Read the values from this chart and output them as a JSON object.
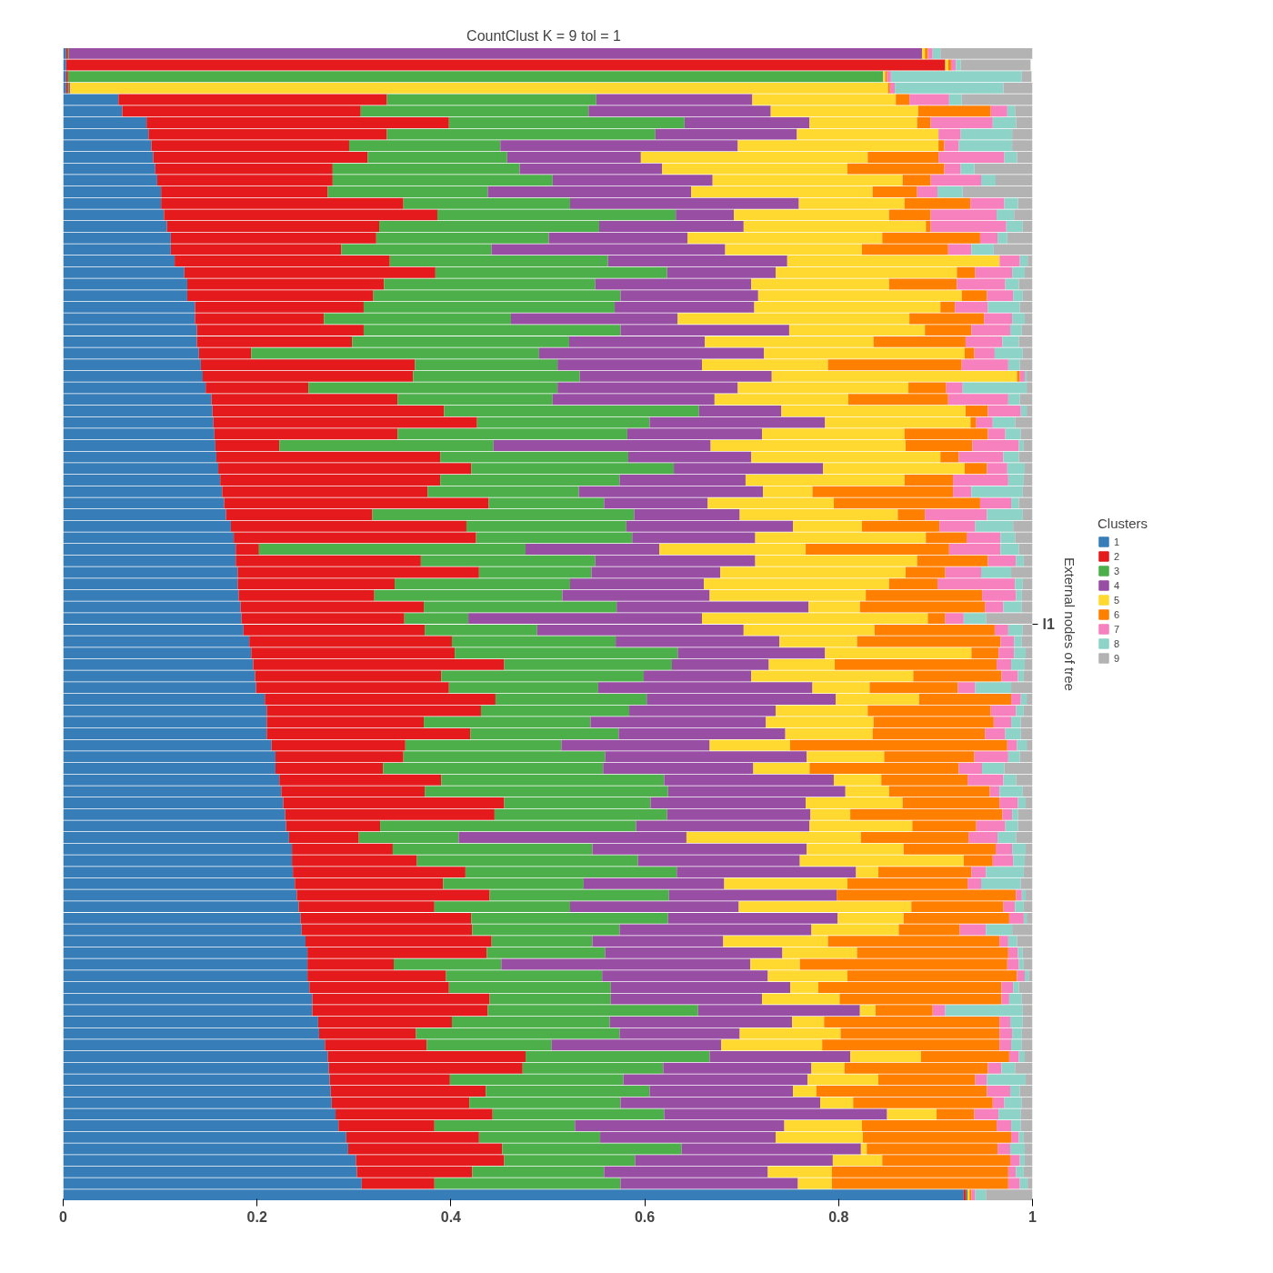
{
  "chart_data": {
    "type": "bar",
    "orientation": "horizontal",
    "stacked": true,
    "title": "CountClust K =  9 tol =  1",
    "ylabel": "External nodes of tree",
    "legend_title": "Clusters",
    "legend": "right",
    "grid": false,
    "annotations": [
      "l1"
    ],
    "xlim": [
      0,
      1
    ],
    "xticks": [
      0,
      0.2,
      0.4,
      0.6,
      0.8,
      1
    ],
    "categories": [
      null,
      null,
      null,
      null,
      null,
      null,
      null,
      null,
      null,
      null,
      null,
      null,
      null,
      null,
      null,
      null,
      null,
      null,
      null,
      null,
      null,
      null,
      null,
      null,
      null,
      null,
      null,
      null,
      null,
      null,
      null,
      null,
      null,
      null,
      null,
      null,
      null,
      null,
      null,
      null,
      null,
      null,
      null,
      null,
      null,
      null,
      null,
      null,
      null,
      null,
      null,
      null,
      null,
      null,
      null,
      null,
      null,
      null,
      null,
      null,
      null,
      null,
      null,
      null,
      null,
      null,
      null,
      null,
      null,
      null,
      null,
      null,
      null,
      null,
      null,
      null,
      null,
      null,
      null,
      null,
      null,
      null,
      null,
      null,
      null,
      null,
      null,
      null,
      null,
      null,
      null,
      null,
      null,
      null,
      null,
      null,
      null,
      null,
      null,
      null
    ],
    "series": [
      {
        "name": "1",
        "color": "#377eb8",
        "values": [
          0.003,
          0.003,
          0.003,
          0.003,
          0.057,
          0.061,
          0.086,
          0.088,
          0.091,
          0.093,
          0.095,
          0.097,
          0.101,
          0.101,
          0.104,
          0.107,
          0.111,
          0.111,
          0.115,
          0.125,
          0.128,
          0.128,
          0.136,
          0.136,
          0.138,
          0.138,
          0.14,
          0.142,
          0.144,
          0.147,
          0.153,
          0.154,
          0.155,
          0.156,
          0.157,
          0.158,
          0.16,
          0.162,
          0.164,
          0.166,
          0.168,
          0.173,
          0.176,
          0.178,
          0.178,
          0.18,
          0.18,
          0.181,
          0.183,
          0.184,
          0.186,
          0.192,
          0.194,
          0.196,
          0.198,
          0.199,
          0.208,
          0.21,
          0.21,
          0.21,
          0.215,
          0.219,
          0.219,
          0.223,
          0.225,
          0.227,
          0.229,
          0.23,
          0.233,
          0.236,
          0.236,
          0.237,
          0.239,
          0.241,
          0.243,
          0.245,
          0.246,
          0.25,
          0.252,
          0.252,
          0.252,
          0.254,
          0.257,
          0.257,
          0.263,
          0.264,
          0.27,
          0.273,
          0.274,
          0.275,
          0.276,
          0.277,
          0.281,
          0.284,
          0.292,
          0.294,
          0.302,
          0.303,
          0.308,
          0.929
        ]
      },
      {
        "name": "2",
        "color": "#e41a1c",
        "values": [
          0.002,
          0.907,
          0.002,
          0.002,
          0.277,
          0.246,
          0.312,
          0.246,
          0.204,
          0.221,
          0.183,
          0.181,
          0.172,
          0.25,
          0.282,
          0.219,
          0.212,
          0.176,
          0.222,
          0.259,
          0.203,
          0.192,
          0.174,
          0.133,
          0.172,
          0.16,
          0.054,
          0.221,
          0.217,
          0.106,
          0.192,
          0.239,
          0.272,
          0.189,
          0.066,
          0.231,
          0.261,
          0.227,
          0.212,
          0.273,
          0.151,
          0.243,
          0.25,
          0.024,
          0.191,
          0.249,
          0.162,
          0.14,
          0.189,
          0.168,
          0.187,
          0.209,
          0.21,
          0.259,
          0.192,
          0.199,
          0.238,
          0.221,
          0.162,
          0.21,
          0.138,
          0.132,
          0.111,
          0.167,
          0.148,
          0.228,
          0.216,
          0.097,
          0.072,
          0.104,
          0.129,
          0.178,
          0.153,
          0.199,
          0.14,
          0.176,
          0.176,
          0.192,
          0.185,
          0.089,
          0.143,
          0.144,
          0.183,
          0.181,
          0.138,
          0.1,
          0.105,
          0.204,
          0.2,
          0.124,
          0.16,
          0.142,
          0.162,
          0.099,
          0.137,
          0.159,
          0.153,
          0.119,
          0.075,
          0.002
        ]
      },
      {
        "name": "3",
        "color": "#4daf4a",
        "values": [
          0.001,
          null,
          0.841,
          0.001,
          0.216,
          0.235,
          0.243,
          0.277,
          0.156,
          0.144,
          0.193,
          0.227,
          0.165,
          0.172,
          0.246,
          0.227,
          0.178,
          0.155,
          0.225,
          0.239,
          0.218,
          0.255,
          0.259,
          0.193,
          0.265,
          0.224,
          0.297,
          0.147,
          0.172,
          0.257,
          0.16,
          0.263,
          0.178,
          0.237,
          0.221,
          0.194,
          0.209,
          0.185,
          0.156,
          0.119,
          0.27,
          0.165,
          0.161,
          0.275,
          0.18,
          0.116,
          0.181,
          0.194,
          0.199,
          0.066,
          0.116,
          0.169,
          0.23,
          0.173,
          0.209,
          0.154,
          0.156,
          0.153,
          0.172,
          0.153,
          0.161,
          0.208,
          0.227,
          0.23,
          0.251,
          0.151,
          0.178,
          0.264,
          0.103,
          0.206,
          0.228,
          0.218,
          0.145,
          0.185,
          0.14,
          0.203,
          0.152,
          0.104,
          0.122,
          0.111,
          0.161,
          0.167,
          0.125,
          0.217,
          0.163,
          0.21,
          0.129,
          0.19,
          0.145,
          0.179,
          0.169,
          0.156,
          0.177,
          0.145,
          0.125,
          0.185,
          0.135,
          0.136,
          0.192,
          0.001
        ]
      },
      {
        "name": "4",
        "color": "#984ea3",
        "values": [
          0.88,
          null,
          null,
          0.001,
          0.161,
          0.188,
          0.129,
          0.146,
          0.245,
          0.138,
          0.147,
          0.165,
          0.21,
          0.236,
          0.06,
          0.149,
          0.143,
          0.241,
          0.185,
          0.112,
          0.161,
          0.142,
          0.144,
          0.172,
          0.174,
          0.14,
          0.232,
          0.149,
          0.198,
          0.186,
          0.167,
          0.085,
          0.181,
          0.139,
          0.224,
          0.127,
          0.154,
          0.13,
          0.19,
          0.107,
          0.109,
          0.172,
          0.127,
          0.138,
          0.165,
          0.133,
          0.138,
          0.152,
          0.198,
          0.241,
          0.213,
          0.169,
          0.152,
          0.1,
          0.111,
          0.221,
          0.195,
          0.151,
          0.181,
          0.172,
          0.153,
          0.208,
          0.155,
          0.175,
          0.183,
          0.16,
          0.148,
          0.179,
          0.235,
          0.221,
          0.167,
          0.185,
          0.145,
          0.173,
          0.174,
          0.175,
          0.198,
          0.135,
          0.183,
          0.257,
          0.171,
          0.185,
          0.156,
          0.167,
          0.188,
          0.124,
          0.175,
          0.145,
          0.153,
          0.19,
          0.148,
          0.206,
          0.23,
          0.216,
          0.181,
          0.185,
          0.204,
          0.169,
          0.183,
          0.001
        ]
      },
      {
        "name": "5",
        "color": "#ffd92f",
        "values": [
          0.003,
          0.003,
          0.002,
          0.844,
          0.148,
          0.152,
          0.111,
          0.146,
          0.207,
          0.234,
          0.191,
          0.196,
          0.187,
          0.109,
          0.16,
          0.188,
          0.201,
          0.141,
          0.219,
          0.187,
          0.142,
          0.21,
          0.192,
          0.239,
          0.14,
          0.174,
          0.207,
          0.13,
          0.253,
          0.176,
          0.138,
          0.19,
          0.15,
          0.147,
          0.201,
          0.195,
          0.146,
          0.164,
          0.051,
          0.13,
          0.163,
          0.071,
          0.176,
          0.151,
          0.167,
          0.191,
          0.191,
          0.161,
          0.053,
          0.233,
          0.135,
          0.08,
          0.151,
          0.068,
          0.167,
          0.059,
          0.086,
          0.095,
          0.111,
          0.09,
          0.083,
          0.08,
          0.058,
          0.049,
          0.045,
          0.1,
          0.041,
          0.106,
          0.18,
          0.1,
          0.169,
          0.023,
          0.127,
          0,
          0.178,
          0.068,
          0.09,
          0.108,
          0.077,
          0.051,
          0.082,
          0.029,
          0.08,
          0.016,
          0.033,
          0.104,
          0.104,
          0.073,
          0.034,
          0.073,
          0.024,
          0.034,
          0.051,
          0.08,
          0.09,
          0.006,
          0.051,
          0.066,
          0.035,
          0.002
        ]
      },
      {
        "name": "6",
        "color": "#ff7f00",
        "values": [
          0.003,
          0.003,
          0.002,
          0.002,
          0.014,
          0.075,
          0.014,
          0,
          0.006,
          0.073,
          0.1,
          0.029,
          0.046,
          0.068,
          0.043,
          0.005,
          0.101,
          0.089,
          0,
          0.019,
          0.07,
          0.026,
          0.015,
          0.077,
          0.048,
          0.095,
          0.01,
          0.138,
          0.003,
          0.039,
          0.103,
          0.023,
          0.006,
          0.086,
          0.069,
          0.019,
          0.023,
          0.05,
          0.145,
          0.151,
          0.028,
          0.08,
          0.042,
          0.148,
          0.073,
          0.041,
          0.05,
          0.12,
          0.129,
          0.018,
          0.124,
          0.148,
          0.028,
          0.167,
          0.091,
          0.091,
          0.095,
          0.127,
          0.124,
          0.116,
          0.224,
          0.093,
          0.154,
          0.089,
          0.104,
          0.1,
          0.157,
          0.066,
          0.111,
          0.095,
          0.03,
          0.096,
          0.124,
          0.185,
          0.095,
          0.109,
          0.063,
          0.177,
          0.156,
          0.214,
          0.175,
          0.189,
          0.167,
          0.059,
          0.181,
          0.164,
          0.183,
          0.091,
          0.148,
          0.1,
          0.176,
          0.144,
          0.039,
          0.139,
          0.153,
          0.135,
          0.132,
          0.182,
          0.182,
          0.002
        ]
      },
      {
        "name": "7",
        "color": "#f781bf",
        "values": [
          0.005,
          0.005,
          0.004,
          0.005,
          0.041,
          0.017,
          0.064,
          0.023,
          0.015,
          0.068,
          0.017,
          0.052,
          0.021,
          0.035,
          0.068,
          0.078,
          0.018,
          0.024,
          0.021,
          0.038,
          0.05,
          0.027,
          0.034,
          0.029,
          0.04,
          0.038,
          0.021,
          0.048,
          0.005,
          0.017,
          0.062,
          0.034,
          0.017,
          0.018,
          0.048,
          0.046,
          0.021,
          0.057,
          0.019,
          0.032,
          0.064,
          0.037,
          0.035,
          0.053,
          0.029,
          0.037,
          0.08,
          0.035,
          0.019,
          0.019,
          0.014,
          0.014,
          0.016,
          0.015,
          0.017,
          0.018,
          0.01,
          0.026,
          0.018,
          0.021,
          0.01,
          0.035,
          0.024,
          0.037,
          0.01,
          0.019,
          0.01,
          0.03,
          0.03,
          0.017,
          0.021,
          0.015,
          0.014,
          0.006,
          0.012,
          0.015,
          0.027,
          0.009,
          0.01,
          0.012,
          0.008,
          0.012,
          0.008,
          0.013,
          0.011,
          0.013,
          0.012,
          0.01,
          0.014,
          0.012,
          0.024,
          0.012,
          0.025,
          0.015,
          0.008,
          0.013,
          0.01,
          0.008,
          0.012,
          0.004
        ]
      },
      {
        "name": "8",
        "color": "#8dd3c7",
        "values": [
          0.008,
          0.005,
          0.135,
          0.112,
          0.013,
          0.008,
          0.024,
          0.053,
          0.055,
          0.013,
          0.014,
          0.015,
          0.026,
          0.014,
          0.018,
          0.017,
          0.01,
          0.023,
          0.008,
          0.013,
          0.014,
          0.01,
          0.033,
          0.013,
          0.012,
          0.017,
          0.029,
          0.012,
          0.002,
          0.066,
          0.012,
          0.006,
          0.023,
          0.016,
          0.005,
          0.016,
          0.018,
          0.016,
          0.053,
          0.008,
          0.037,
          0.039,
          0.015,
          0.019,
          0.008,
          0.031,
          0.008,
          0.006,
          0.019,
          0.023,
          0.015,
          0.008,
          0.012,
          0.014,
          0.006,
          0.037,
          0.006,
          0.008,
          0.01,
          0.016,
          0.01,
          0.012,
          0.023,
          0.013,
          0.024,
          0.008,
          0.006,
          0.013,
          0.019,
          0.014,
          0.012,
          0.039,
          0.041,
          0.004,
          0.009,
          0.003,
          0.027,
          0.009,
          0.005,
          0.005,
          0.004,
          0.006,
          0.013,
          0.08,
          0.013,
          0.01,
          0.011,
          0.006,
          0.014,
          0.04,
          0.01,
          0.018,
          0.023,
          0.01,
          0.005,
          0.015,
          0.005,
          0.008,
          0.008,
          0.011
        ]
      },
      {
        "name": "9",
        "color": "#b3b3b3",
        "values": [
          0.095,
          0.072,
          0.01,
          0.03,
          0.073,
          0.018,
          0.017,
          0.021,
          0.021,
          0.016,
          0.06,
          0.038,
          0.072,
          0.015,
          0.019,
          0.01,
          0.026,
          0.04,
          0.005,
          0.008,
          0.014,
          0.01,
          0.013,
          0.008,
          0.011,
          0.014,
          0.01,
          0.013,
          0.006,
          0.006,
          0.013,
          0.006,
          0.018,
          0.012,
          0.009,
          0.014,
          0.008,
          0.009,
          0.01,
          0.014,
          0.01,
          0.02,
          0.018,
          0.014,
          0.009,
          0.022,
          0.01,
          0.011,
          0.011,
          0.048,
          0.01,
          0.011,
          0.007,
          0.008,
          0.009,
          0.022,
          0.006,
          0.009,
          0.012,
          0.012,
          0.006,
          0.013,
          0.029,
          0.017,
          0.01,
          0.007,
          0.015,
          0.015,
          0.017,
          0.007,
          0.008,
          0.009,
          0.012,
          0.007,
          0.009,
          0.006,
          0.021,
          0.016,
          0.01,
          0.009,
          0.004,
          0.014,
          0.011,
          0.01,
          0.01,
          0.011,
          0.011,
          0.008,
          0.018,
          0.007,
          0.013,
          0.011,
          0.012,
          0.012,
          0.009,
          0.008,
          0.008,
          0.009,
          0.005,
          0.048
        ]
      }
    ]
  }
}
